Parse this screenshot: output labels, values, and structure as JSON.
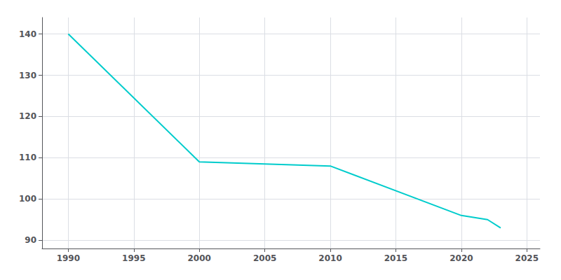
{
  "chart_data": {
    "type": "line",
    "x": [
      1990,
      2000,
      2010,
      2020,
      2022,
      2023
    ],
    "values": [
      140,
      109,
      108,
      96,
      95,
      93
    ],
    "color": "#00CCCC",
    "xlim": [
      1988,
      2026
    ],
    "ylim": [
      88,
      144
    ],
    "xticks": [
      1990,
      1995,
      2000,
      2005,
      2010,
      2015,
      2020,
      2025
    ],
    "yticks": [
      90,
      100,
      110,
      120,
      130,
      140
    ],
    "grid": true
  }
}
